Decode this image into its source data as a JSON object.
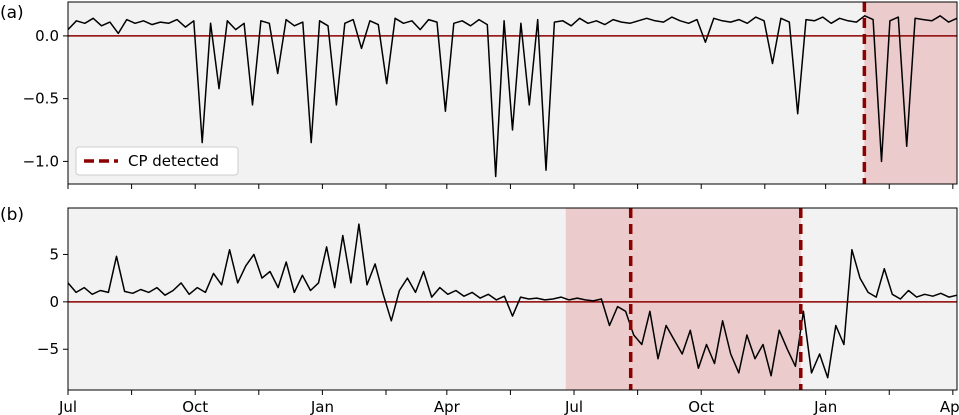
{
  "chart_data": [
    {
      "type": "line",
      "panel_label": "(a)",
      "xlabel": "",
      "ylabel": "",
      "x_ticks": [
        "Jul",
        "",
        "Oct",
        "",
        "Jan",
        "",
        "Apr",
        "",
        "Jul",
        "",
        "Oct",
        "",
        "Jan",
        "",
        "Apr"
      ],
      "y_ticks": [
        "0.0",
        "−0.5",
        "−1.0"
      ],
      "y_tick_values": [
        0.0,
        -0.5,
        -1.0
      ],
      "ylim": [
        -1.18,
        0.27
      ],
      "x_range_days": [
        0,
        643
      ],
      "reference_line": {
        "y": 0,
        "color": "#8b0000"
      },
      "legend": {
        "entries": [
          "CP detected"
        ],
        "position": "lower-left"
      },
      "change_points_day": [
        576
      ],
      "shaded_regions_day": [
        [
          576,
          643
        ]
      ],
      "series": [
        {
          "baseline_before": 0.1,
          "baseline_after": -0.25,
          "values": [
            0.05,
            0.12,
            0.1,
            0.14,
            0.08,
            0.11,
            0.02,
            0.13,
            0.1,
            0.12,
            0.09,
            0.11,
            0.1,
            0.13,
            0.07,
            0.12,
            -0.85,
            0.1,
            -0.42,
            0.12,
            0.05,
            0.1,
            -0.55,
            0.12,
            0.1,
            -0.3,
            0.13,
            0.08,
            0.11,
            -0.85,
            0.12,
            0.08,
            -0.55,
            0.1,
            0.13,
            -0.1,
            0.12,
            0.09,
            -0.38,
            0.14,
            0.1,
            0.12,
            0.05,
            0.13,
            0.11,
            -0.6,
            0.1,
            0.12,
            0.08,
            0.13,
            0.09,
            -1.12,
            0.12,
            -0.75,
            0.1,
            -0.55,
            0.13,
            -1.07,
            0.11,
            0.12,
            0.08,
            0.14,
            0.1,
            0.12,
            0.09,
            0.13,
            0.11,
            0.1,
            0.12,
            0.14,
            0.12,
            0.11,
            0.15,
            0.12,
            0.1,
            0.13,
            -0.05,
            0.14,
            0.12,
            0.11,
            0.13,
            0.1,
            0.15,
            0.12,
            -0.22,
            0.14,
            0.11,
            -0.62,
            0.13,
            0.12,
            0.15,
            0.1,
            0.14,
            0.12,
            0.11,
            0.16,
            0.13,
            -1.0,
            0.12,
            0.15,
            -0.88,
            0.14,
            0.13,
            0.12,
            0.16,
            0.11,
            0.14
          ]
        }
      ]
    },
    {
      "type": "line",
      "panel_label": "(b)",
      "xlabel": "",
      "ylabel": "",
      "x_ticks": [
        "Jul",
        "",
        "Oct",
        "",
        "Jan",
        "",
        "Apr",
        "",
        "Jul",
        "",
        "Oct",
        "",
        "Jan",
        "",
        "Apr"
      ],
      "y_ticks": [
        "5",
        "0",
        "−5"
      ],
      "y_tick_values": [
        5,
        0,
        -5
      ],
      "ylim": [
        -9.3,
        9.9
      ],
      "x_range_days": [
        0,
        643
      ],
      "reference_line": {
        "y": 0,
        "color": "#8b0000"
      },
      "change_points_day": [
        407,
        530
      ],
      "shaded_regions_day": [
        [
          360,
          530
        ]
      ],
      "series": [
        {
          "values": [
            2.0,
            1.0,
            1.5,
            0.8,
            1.2,
            1.0,
            4.8,
            1.1,
            0.9,
            1.3,
            1.0,
            1.5,
            0.7,
            1.2,
            2.0,
            0.8,
            1.5,
            1.0,
            3.0,
            1.8,
            5.5,
            2.0,
            3.8,
            5.0,
            2.5,
            3.2,
            1.5,
            4.2,
            1.0,
            2.8,
            1.2,
            2.0,
            5.8,
            1.5,
            7.0,
            2.0,
            8.2,
            1.8,
            4.0,
            0.8,
            -2.0,
            1.2,
            2.5,
            1.0,
            3.2,
            0.5,
            1.5,
            0.8,
            1.2,
            0.6,
            1.0,
            0.4,
            0.8,
            0.2,
            0.6,
            -1.5,
            0.5,
            0.3,
            0.4,
            0.2,
            0.3,
            0.5,
            0.2,
            0.4,
            0.2,
            0.1,
            0.3,
            -2.5,
            -0.5,
            -1.0,
            -3.5,
            -4.5,
            -1.0,
            -6.0,
            -2.5,
            -4.0,
            -5.5,
            -3.0,
            -7.0,
            -4.5,
            -6.5,
            -2.0,
            -5.5,
            -7.5,
            -3.5,
            -6.0,
            -4.5,
            -7.8,
            -3.0,
            -5.0,
            -6.8,
            -1.0,
            -7.5,
            -5.5,
            -8.0,
            -2.5,
            -4.5,
            5.5,
            2.5,
            1.0,
            0.5,
            3.5,
            0.8,
            0.3,
            1.2,
            0.5,
            0.8,
            0.6,
            0.9,
            0.5,
            0.7
          ]
        }
      ]
    }
  ],
  "colors": {
    "background": "#f2f2f2",
    "line": "#000000",
    "change_point": "#8b0000",
    "shaded": "#ebcbcb"
  }
}
